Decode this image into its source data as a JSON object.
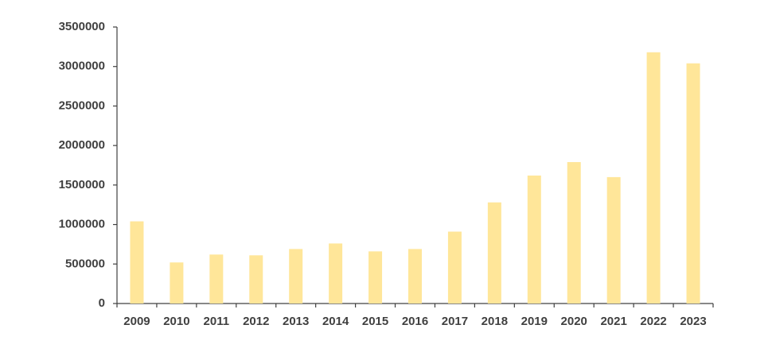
{
  "chart_data": {
    "type": "bar",
    "categories": [
      "2009",
      "2010",
      "2011",
      "2012",
      "2013",
      "2014",
      "2015",
      "2016",
      "2017",
      "2018",
      "2019",
      "2020",
      "2021",
      "2022",
      "2023"
    ],
    "values": [
      1040000,
      520000,
      620000,
      610000,
      690000,
      760000,
      660000,
      690000,
      910000,
      1280000,
      1620000,
      1790000,
      1600000,
      3180000,
      3040000
    ],
    "color": "#ffe699",
    "ylim": [
      0,
      3500000
    ],
    "yticks": [
      0,
      500000,
      1000000,
      1500000,
      2000000,
      2500000,
      3000000,
      3500000
    ],
    "grid": false
  }
}
